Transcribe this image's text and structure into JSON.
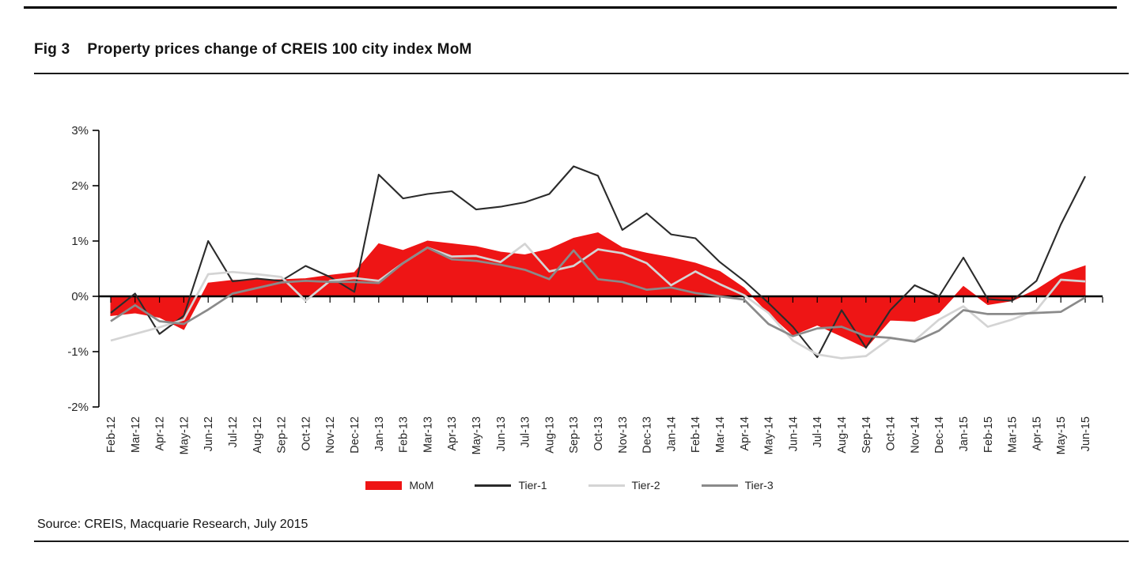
{
  "page": {
    "fig_label": "Fig 3",
    "title": "Property prices change of CREIS 100 city index MoM",
    "source": "Source: CREIS, Macquarie Research, July 2015"
  },
  "chart_data": {
    "type": "area+line",
    "title": "Property prices change of CREIS 100 city index MoM",
    "xlabel": "",
    "ylabel": "",
    "ylim": [
      -2,
      3
    ],
    "y_tick_labels": [
      "3%",
      "2%",
      "1%",
      "0%",
      "-1%",
      "-2%"
    ],
    "y_tick_values": [
      3,
      2,
      1,
      0,
      -1,
      -2
    ],
    "grid": false,
    "legend_position": "bottom",
    "categories": [
      "Feb-12",
      "Mar-12",
      "Apr-12",
      "May-12",
      "Jun-12",
      "Jul-12",
      "Aug-12",
      "Sep-12",
      "Oct-12",
      "Nov-12",
      "Dec-12",
      "Jan-13",
      "Feb-13",
      "Mar-13",
      "Apr-13",
      "May-13",
      "Jun-13",
      "Jul-13",
      "Aug-13",
      "Sep-13",
      "Oct-13",
      "Nov-13",
      "Dec-13",
      "Jan-14",
      "Feb-14",
      "Mar-14",
      "Apr-14",
      "May-14",
      "Jun-14",
      "Jul-14",
      "Aug-14",
      "Sep-14",
      "Oct-14",
      "Nov-14",
      "Dec-14",
      "Jan-15",
      "Feb-15",
      "Mar-15",
      "Apr-15",
      "May-15",
      "Jun-15"
    ],
    "series": [
      {
        "name": "MoM",
        "type": "area",
        "color": "#ee1515",
        "values": [
          -0.35,
          -0.3,
          -0.38,
          -0.6,
          0.24,
          0.29,
          0.3,
          0.3,
          0.32,
          0.38,
          0.43,
          0.95,
          0.83,
          1.0,
          0.95,
          0.9,
          0.8,
          0.75,
          0.85,
          1.05,
          1.15,
          0.88,
          0.78,
          0.7,
          0.6,
          0.45,
          0.15,
          -0.3,
          -0.7,
          -0.52,
          -0.72,
          -0.93,
          -0.43,
          -0.45,
          -0.3,
          0.18,
          -0.15,
          -0.08,
          0.12,
          0.4,
          0.55
        ]
      },
      {
        "name": "Tier-1",
        "type": "line",
        "color": "#2b2b2b",
        "values": [
          -0.3,
          0.05,
          -0.68,
          -0.35,
          1.0,
          0.27,
          0.32,
          0.28,
          0.55,
          0.35,
          0.08,
          2.2,
          1.77,
          1.85,
          1.9,
          1.57,
          1.62,
          1.7,
          1.85,
          2.35,
          2.18,
          1.2,
          1.5,
          1.12,
          1.05,
          0.62,
          0.28,
          -0.12,
          -0.55,
          -1.1,
          -0.25,
          -0.93,
          -0.25,
          0.2,
          0.0,
          0.7,
          -0.05,
          -0.08,
          0.28,
          1.3,
          2.17
        ]
      },
      {
        "name": "Tier-2",
        "type": "line",
        "color": "#d4d4d4",
        "values": [
          -0.8,
          -0.68,
          -0.56,
          -0.42,
          0.4,
          0.44,
          0.4,
          0.35,
          -0.08,
          0.28,
          0.33,
          0.28,
          0.6,
          0.88,
          0.72,
          0.73,
          0.62,
          0.95,
          0.45,
          0.55,
          0.85,
          0.78,
          0.6,
          0.2,
          0.45,
          0.22,
          0.02,
          -0.3,
          -0.8,
          -1.05,
          -1.12,
          -1.08,
          -0.76,
          -0.8,
          -0.42,
          -0.18,
          -0.55,
          -0.42,
          -0.25,
          0.3,
          0.27
        ]
      },
      {
        "name": "Tier-3",
        "type": "line",
        "color": "#8a8a8a",
        "values": [
          -0.45,
          -0.16,
          -0.45,
          -0.5,
          -0.24,
          0.05,
          0.15,
          0.25,
          0.28,
          0.26,
          0.26,
          0.24,
          0.6,
          0.88,
          0.67,
          0.64,
          0.57,
          0.48,
          0.31,
          0.83,
          0.31,
          0.26,
          0.12,
          0.16,
          0.06,
          0.0,
          -0.06,
          -0.5,
          -0.72,
          -0.58,
          -0.55,
          -0.72,
          -0.75,
          -0.82,
          -0.62,
          -0.25,
          -0.32,
          -0.32,
          -0.3,
          -0.28,
          -0.02
        ]
      }
    ],
    "axis_color": "#000000",
    "tick_label_color": "#262626"
  }
}
